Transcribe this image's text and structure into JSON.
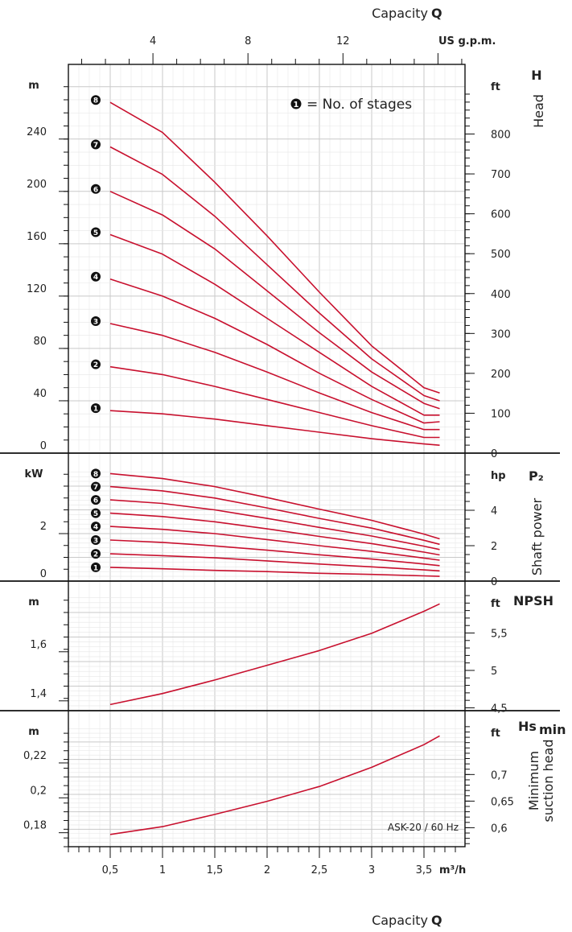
{
  "header": {
    "capacity_label": "Capacity",
    "capacity_symbol": "Q"
  },
  "footer": {
    "capacity_label": "Capacity",
    "capacity_symbol": "Q"
  },
  "model_label": "ASK-20 / 60 Hz",
  "legend_note": "= No. of stages",
  "chart_data": [
    {
      "type": "line",
      "panel": "head",
      "title_symbol": "H",
      "ylabel": "Head",
      "x_unit": "m³/h",
      "x_ticks": [
        "0,5",
        "1",
        "1,5",
        "2",
        "2,5",
        "3",
        "3,5"
      ],
      "x_top_unit": "US g.p.m.",
      "x_top_ticks": [
        "4",
        "8",
        "12"
      ],
      "xlim": [
        0,
        3.9
      ],
      "y_unit": "m",
      "y_ticks": [
        "0",
        "40",
        "80",
        "120",
        "160",
        "200",
        "240"
      ],
      "ylim": [
        0,
        280
      ],
      "y2_unit": "ft",
      "y2_ticks": [
        "0",
        "100",
        "200",
        "300",
        "400",
        "500",
        "600",
        "700",
        "800"
      ],
      "x": [
        0.5,
        1.0,
        1.5,
        2.0,
        2.5,
        3.0,
        3.5,
        3.65
      ],
      "series": [
        {
          "name": "1",
          "values": [
            32.5,
            30,
            26,
            21,
            16,
            11,
            7,
            6
          ]
        },
        {
          "name": "2",
          "values": [
            66,
            60,
            51,
            41,
            31,
            21,
            12,
            12
          ]
        },
        {
          "name": "3",
          "values": [
            99,
            90,
            77,
            62,
            46,
            31,
            18,
            18
          ]
        },
        {
          "name": "4",
          "values": [
            133,
            120,
            103,
            83,
            61,
            41,
            23,
            24
          ]
        },
        {
          "name": "5",
          "values": [
            167,
            152,
            129,
            103,
            77,
            51,
            29,
            29
          ]
        },
        {
          "name": "6",
          "values": [
            200,
            182,
            156,
            124,
            92,
            62,
            38,
            34
          ]
        },
        {
          "name": "7",
          "values": [
            234,
            213,
            181,
            144,
            107,
            72,
            44,
            40
          ]
        },
        {
          "name": "8",
          "values": [
            268,
            245,
            207,
            166,
            123,
            82,
            50,
            46
          ]
        }
      ]
    },
    {
      "type": "line",
      "panel": "power",
      "title_symbol": "P₂",
      "ylabel": "Shaft power",
      "y_unit": "kW",
      "y_ticks": [
        "0",
        "2"
      ],
      "ylim": [
        0,
        4.5
      ],
      "y2_unit": "hp",
      "y2_ticks": [
        "0",
        "2",
        "4"
      ],
      "x": [
        0.5,
        1.0,
        1.5,
        2.0,
        2.5,
        3.0,
        3.5,
        3.65
      ],
      "series": [
        {
          "name": "1",
          "values": [
            0.58,
            0.52,
            0.45,
            0.4,
            0.33,
            0.28,
            0.22,
            0.2
          ]
        },
        {
          "name": "2",
          "values": [
            1.15,
            1.07,
            0.98,
            0.85,
            0.72,
            0.6,
            0.47,
            0.43
          ]
        },
        {
          "name": "3",
          "values": [
            1.73,
            1.63,
            1.48,
            1.3,
            1.11,
            0.93,
            0.72,
            0.65
          ]
        },
        {
          "name": "4",
          "values": [
            2.3,
            2.18,
            2.0,
            1.75,
            1.49,
            1.25,
            0.97,
            0.88
          ]
        },
        {
          "name": "5",
          "values": [
            2.86,
            2.72,
            2.5,
            2.2,
            1.88,
            1.58,
            1.22,
            1.1
          ]
        },
        {
          "name": "6",
          "values": [
            3.42,
            3.27,
            3.0,
            2.64,
            2.26,
            1.9,
            1.47,
            1.33
          ]
        },
        {
          "name": "7",
          "values": [
            3.98,
            3.8,
            3.5,
            3.08,
            2.64,
            2.23,
            1.72,
            1.55
          ]
        },
        {
          "name": "8",
          "values": [
            4.53,
            4.32,
            3.98,
            3.52,
            3.03,
            2.56,
            1.98,
            1.78
          ]
        }
      ]
    },
    {
      "type": "line",
      "panel": "npsh",
      "title_symbol": "NPSH",
      "y_unit": "m",
      "y_ticks": [
        "1,4",
        "1,6"
      ],
      "ylim": [
        1.36,
        1.82
      ],
      "y2_unit": "ft",
      "y2_ticks": [
        "4,5",
        "5",
        "5,5"
      ],
      "x": [
        0.5,
        1.0,
        1.5,
        2.0,
        2.5,
        3.0,
        3.5,
        3.65
      ],
      "series": [
        {
          "name": "NPSH",
          "values": [
            1.385,
            1.43,
            1.485,
            1.545,
            1.605,
            1.675,
            1.765,
            1.795
          ]
        }
      ]
    },
    {
      "type": "line",
      "panel": "hsmin",
      "title_symbol": "Hs",
      "title_sub": "min",
      "ylabel": "Minimum suction head",
      "y_unit": "m",
      "y_ticks": [
        "0,18",
        "0,2",
        "0,22"
      ],
      "ylim": [
        0.172,
        0.24
      ],
      "y2_unit": "ft",
      "y2_ticks": [
        "0,6",
        "0,65",
        "0,7"
      ],
      "x": [
        0.5,
        1.0,
        1.5,
        2.0,
        2.5,
        3.0,
        3.5,
        3.65
      ],
      "series": [
        {
          "name": "Hs min",
          "values": [
            0.179,
            0.1835,
            0.1905,
            0.198,
            0.2065,
            0.2175,
            0.2305,
            0.2355
          ]
        }
      ]
    }
  ]
}
